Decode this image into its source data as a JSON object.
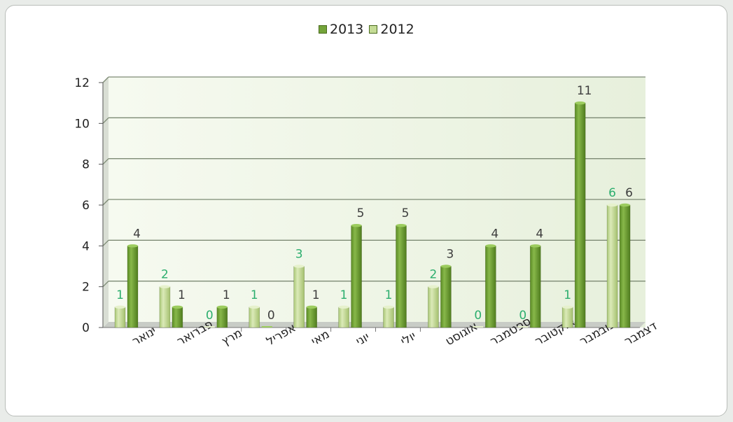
{
  "chart_data": {
    "type": "bar",
    "categories": [
      "ינואר",
      "פברואר",
      "מרץ",
      "אפריל",
      "מאי",
      "יוני",
      "יולי",
      "אוגוסט",
      "ספטמבר",
      "אוקטובר",
      "נובמבר",
      "דצמבר"
    ],
    "series": [
      {
        "name": "2012",
        "values": [
          1,
          2,
          0,
          1,
          3,
          1,
          1,
          2,
          0,
          0,
          1,
          6
        ],
        "color": "#c5dc96",
        "label_color": "#2cae6e"
      },
      {
        "name": "2013",
        "values": [
          4,
          1,
          1,
          0,
          1,
          5,
          5,
          3,
          4,
          4,
          11,
          6
        ],
        "color": "#74a43a",
        "label_color": "#3d3d3d"
      }
    ],
    "ylim": [
      0,
      12
    ],
    "yticks": [
      0,
      2,
      4,
      6,
      8,
      10,
      12
    ],
    "grid": true,
    "legend_position": "top-center",
    "title": "",
    "xlabel": "",
    "ylabel": ""
  },
  "legend": {
    "items": [
      {
        "label": "2013",
        "color": "#74a43a"
      },
      {
        "label": "2012",
        "color": "#c5dc96"
      }
    ]
  }
}
